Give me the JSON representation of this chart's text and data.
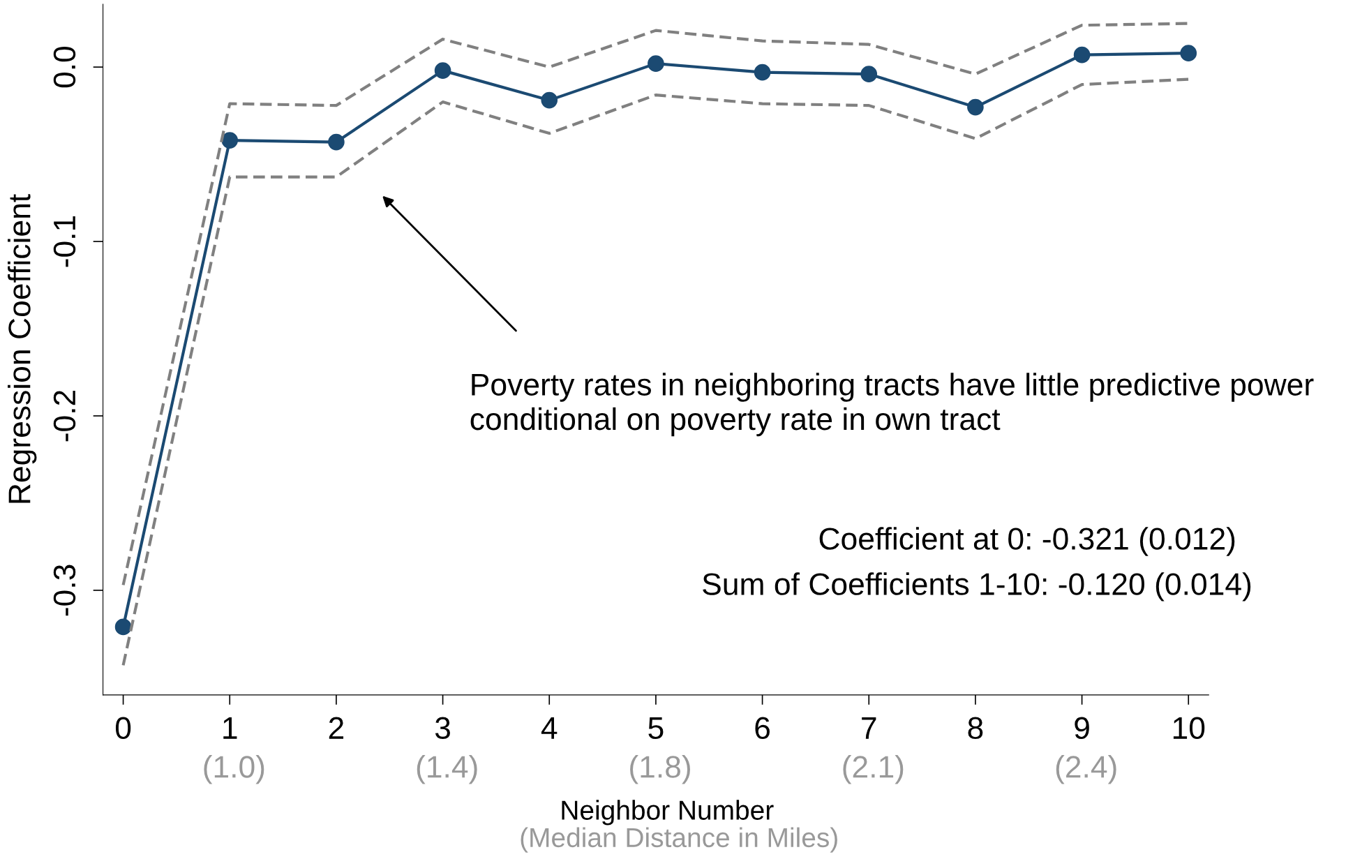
{
  "chart_data": {
    "type": "line",
    "xlabel": "Neighbor Number",
    "ylabel": "Regression Coefficient",
    "x": [
      0,
      1,
      2,
      3,
      4,
      5,
      6,
      7,
      8,
      9,
      10
    ],
    "series": [
      {
        "color": "#1b4a72",
        "marker": "circle",
        "line_style": "solid",
        "values": [
          -0.321,
          -0.042,
          -0.043,
          -0.002,
          -0.019,
          0.002,
          -0.003,
          -0.004,
          -0.023,
          0.007,
          0.008
        ]
      },
      {
        "color": "#808080",
        "marker": "none",
        "line_style": "dashed",
        "values": [
          -0.297,
          -0.021,
          -0.022,
          0.016,
          0.0,
          0.021,
          0.015,
          0.013,
          -0.004,
          0.024,
          0.025
        ]
      },
      {
        "color": "#808080",
        "marker": "none",
        "line_style": "dashed",
        "values": [
          -0.343,
          -0.063,
          -0.063,
          -0.02,
          -0.038,
          -0.016,
          -0.021,
          -0.022,
          -0.041,
          -0.01,
          -0.007
        ]
      }
    ],
    "xlim": [
      -0.19,
      10.19
    ],
    "ylim": [
      -0.36,
      0.036
    ],
    "xticks": [
      0,
      1,
      2,
      3,
      4,
      5,
      6,
      7,
      8,
      9,
      10
    ],
    "yticks": [
      {
        "value": 0,
        "label": "0.0"
      },
      {
        "value": -0.1,
        "label": "-0.1"
      },
      {
        "value": -0.2,
        "label": "-0.2"
      },
      {
        "value": -0.3,
        "label": "-0.3"
      }
    ],
    "grid": false,
    "legend": false,
    "annotations": [
      "Poverty rates in neighboring tracts have little predictive power\nconditional on poverty rate in own tract",
      "Coefficient at 0: -0.321 (0.012)",
      "Sum of Coefficients 1-10: -0.120 (0.014)",
      "(1.0)",
      "(1.4)",
      "(1.8)",
      "(2.1)",
      "(2.4)",
      "(Median Distance in Miles)"
    ]
  }
}
